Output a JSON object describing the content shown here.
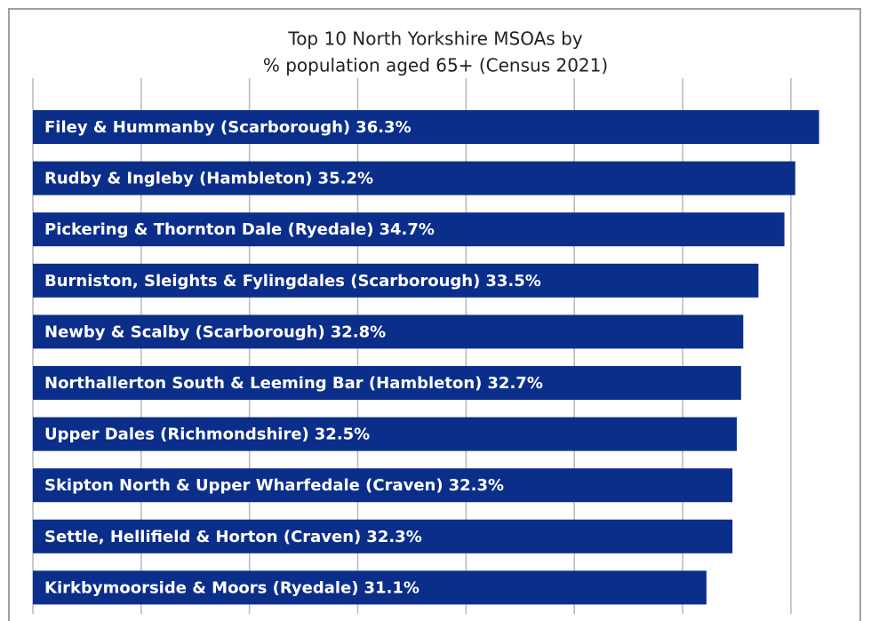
{
  "chart_data": {
    "type": "bar",
    "orientation": "horizontal",
    "title": [
      "Top 10 North Yorkshire MSOAs by",
      "% population aged 65+ (Census 2021)"
    ],
    "categories": [
      "Filey & Hummanby (Scarborough)",
      "Rudby & Ingleby (Hambleton)",
      "Pickering & Thornton Dale (Ryedale)",
      "Burniston, Sleights & Fylingdales (Scarborough)",
      "Newby & Scalby (Scarborough)",
      "Northallerton South & Leeming Bar (Hambleton)",
      "Upper Dales (Richmondshire)",
      "Skipton North & Upper Wharfedale (Craven)",
      "Settle, Hellifield & Horton (Craven)",
      "Kirkbymoorside & Moors (Ryedale)"
    ],
    "values": [
      36.3,
      35.2,
      34.7,
      33.5,
      32.8,
      32.7,
      32.5,
      32.3,
      32.3,
      31.1
    ],
    "value_labels": [
      "36.3%",
      "35.2%",
      "34.7%",
      "33.5%",
      "32.8%",
      "32.7%",
      "32.5%",
      "32.3%",
      "32.3%",
      "31.1%"
    ],
    "color": "#0b2e8a",
    "xlim": [
      0,
      38
    ],
    "xticks": [
      0,
      5,
      10,
      15,
      20,
      25,
      30,
      35
    ],
    "grid": true
  }
}
